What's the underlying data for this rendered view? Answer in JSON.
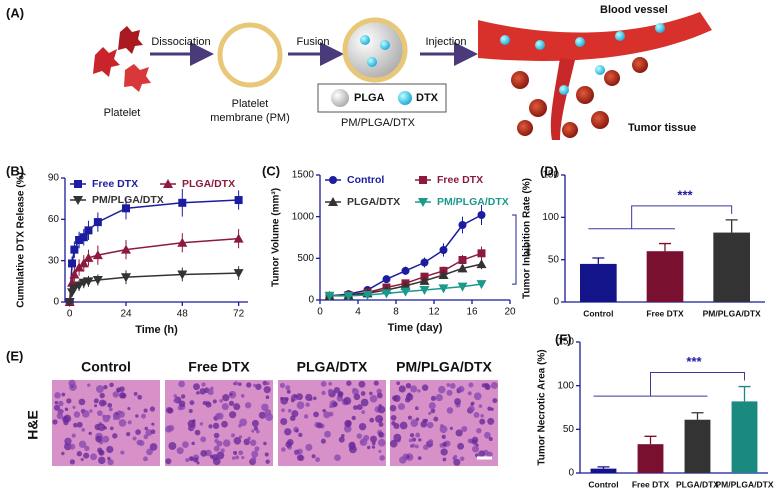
{
  "figure": {
    "schematic": {
      "panel": "(A)",
      "platelet": "Platelet",
      "step1": "Dissociation",
      "membrane": [
        "Platelet",
        "membrane (PM)"
      ],
      "step2": "Fusion",
      "legend": [
        "PLGA",
        "DTX"
      ],
      "nanoparticle": "PM/PLGA/DTX",
      "step3": "Injection",
      "vessel": "Blood vessel",
      "tumor": "Tumor tissue"
    },
    "histology": {
      "panel": "(E)",
      "stain": "H&E",
      "groups": [
        "Control",
        "Free DTX",
        "PLGA/DTX",
        "PM/PLGA/DTX"
      ]
    }
  },
  "chart_data": [
    {
      "panel": "(B)",
      "type": "line",
      "x_label": "Time (h)",
      "y_label": "Cumulative DTX Release (%)",
      "x": [
        0,
        1,
        2,
        4,
        6,
        8,
        12,
        24,
        48,
        72
      ],
      "xlim": [
        -2,
        76
      ],
      "ylim": [
        0,
        90
      ],
      "xticks": [
        0,
        24,
        48,
        72
      ],
      "yticks": [
        0,
        30,
        60,
        90
      ],
      "series": [
        {
          "name": "Free DTX",
          "color": "#1c1ca0",
          "marker": "square",
          "values": [
            0,
            28,
            38,
            45,
            47,
            52,
            58,
            68,
            72,
            74
          ],
          "errors": [
            0,
            5,
            6,
            6,
            6,
            7,
            7,
            8,
            10,
            7
          ]
        },
        {
          "name": "PLGA/DTX",
          "color": "#8b1a3c",
          "marker": "triangle",
          "values": [
            0,
            14,
            20,
            25,
            28,
            32,
            34,
            38,
            43,
            46
          ],
          "errors": [
            0,
            4,
            5,
            6,
            6,
            6,
            7,
            7,
            7,
            7
          ]
        },
        {
          "name": "PM/PLGA/DTX",
          "color": "#333333",
          "marker": "down-triangle",
          "values": [
            0,
            7,
            10,
            12,
            14,
            15,
            16,
            18,
            20,
            21
          ],
          "errors": [
            0,
            3,
            3,
            4,
            4,
            4,
            4,
            5,
            5,
            5
          ]
        }
      ]
    },
    {
      "panel": "(C)",
      "type": "line",
      "x_label": "Time (day)",
      "y_label": "Tumor Volume (mm³)",
      "annotation": "***",
      "x": [
        1,
        3,
        5,
        7,
        9,
        11,
        13,
        15,
        17
      ],
      "xlim": [
        0,
        20
      ],
      "ylim": [
        0,
        1500
      ],
      "xticks": [
        0,
        4,
        8,
        12,
        16,
        20
      ],
      "yticks": [
        0,
        500,
        1000,
        1500
      ],
      "series": [
        {
          "name": "Control",
          "color": "#1c1ca0",
          "marker": "circle",
          "values": [
            50,
            70,
            120,
            250,
            350,
            450,
            600,
            900,
            1020
          ],
          "errors": [
            10,
            15,
            20,
            30,
            50,
            60,
            80,
            100,
            120
          ]
        },
        {
          "name": "Free DTX",
          "color": "#8b1a3c",
          "marker": "square",
          "values": [
            50,
            60,
            90,
            150,
            200,
            280,
            350,
            480,
            560
          ],
          "errors": [
            10,
            10,
            15,
            20,
            30,
            40,
            50,
            60,
            80
          ]
        },
        {
          "name": "PLGA/DTX",
          "color": "#333333",
          "marker": "triangle",
          "values": [
            50,
            55,
            80,
            120,
            170,
            230,
            300,
            380,
            430
          ],
          "errors": [
            10,
            10,
            15,
            20,
            30,
            30,
            40,
            50,
            60
          ]
        },
        {
          "name": "PM/PLGA/DTX",
          "color": "#1a9a8a",
          "marker": "down-triangle",
          "values": [
            50,
            50,
            60,
            80,
            100,
            120,
            140,
            160,
            190
          ],
          "errors": [
            5,
            5,
            10,
            10,
            15,
            20,
            20,
            30,
            40
          ]
        }
      ]
    },
    {
      "panel": "(D)",
      "type": "bar",
      "y_label": "Tumor Inhibition Rate (%)",
      "annotation": "***",
      "categories": [
        "Control",
        "Free DTX",
        "PM/PLGA/DTX"
      ],
      "values": [
        45,
        60,
        82
      ],
      "errors": [
        7,
        9,
        15
      ],
      "colors": [
        "#14148a",
        "#7a1030",
        "#333333"
      ],
      "ylim": [
        0,
        150
      ],
      "yticks": [
        0,
        50,
        100,
        150
      ]
    },
    {
      "panel": "(F)",
      "type": "bar",
      "y_label": "Tumor Necrotic Area (%)",
      "annotation": "***",
      "categories": [
        "Control",
        "Free DTX",
        "PLGA/DTX",
        "PM/PLGA/DTX"
      ],
      "values": [
        5,
        33,
        61,
        82
      ],
      "errors": [
        2,
        9,
        8,
        17
      ],
      "colors": [
        "#14148a",
        "#7a1030",
        "#333333",
        "#1a8a80"
      ],
      "ylim": [
        0,
        150
      ],
      "yticks": [
        0,
        50,
        100,
        150
      ]
    }
  ]
}
